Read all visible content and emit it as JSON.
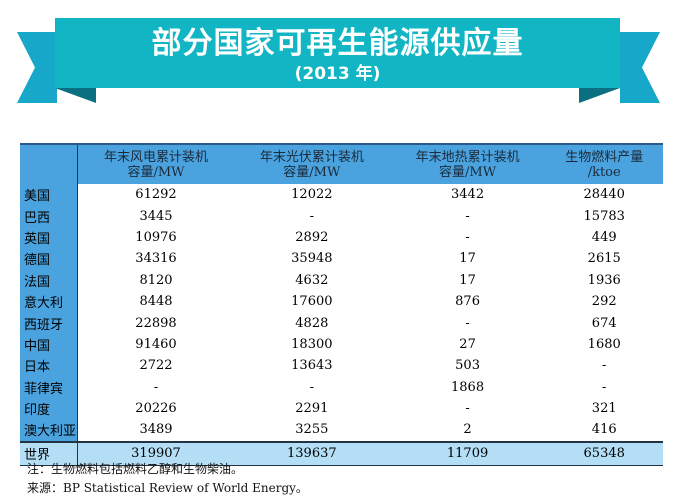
{
  "banner": {
    "title": "部分国家可再生能源供应量",
    "subtitle": "(2013 年)",
    "color": "#12b5c3"
  },
  "table": {
    "headers": [
      [
        "",
        ""
      ],
      [
        "年末风电累计装机",
        "容量/MW"
      ],
      [
        "年末光伏累计装机",
        "容量/MW"
      ],
      [
        "年末地热累计装机",
        "容量/MW"
      ],
      [
        "生物燃料产量",
        "/ktoe"
      ]
    ],
    "rows": [
      [
        "美国",
        "61292",
        "12022",
        "3442",
        "28440"
      ],
      [
        "巴西",
        "3445",
        "-",
        "-",
        "15783"
      ],
      [
        "英国",
        "10976",
        "2892",
        "-",
        "449"
      ],
      [
        "德国",
        "34316",
        "35948",
        "17",
        "2615"
      ],
      [
        "法国",
        "8120",
        "4632",
        "17",
        "1936"
      ],
      [
        "意大利",
        "8448",
        "17600",
        "876",
        "292"
      ],
      [
        "西班牙",
        "22898",
        "4828",
        "-",
        "674"
      ],
      [
        "中国",
        "91460",
        "18300",
        "27",
        "1680"
      ],
      [
        "日本",
        "2722",
        "13643",
        "503",
        "-"
      ],
      [
        "菲律宾",
        "-",
        "-",
        "1868",
        "-"
      ],
      [
        "印度",
        "20226",
        "2291",
        "-",
        "321"
      ],
      [
        "澳大利亚",
        "3489",
        "3255",
        "2",
        "416"
      ]
    ],
    "total": [
      "世界",
      "319907",
      "139637",
      "11709",
      "65348"
    ]
  },
  "notes": {
    "note": "注：生物燃料包括燃料乙醇和生物柴油。",
    "source": "来源：BP Statistical Review of World Energy。"
  }
}
